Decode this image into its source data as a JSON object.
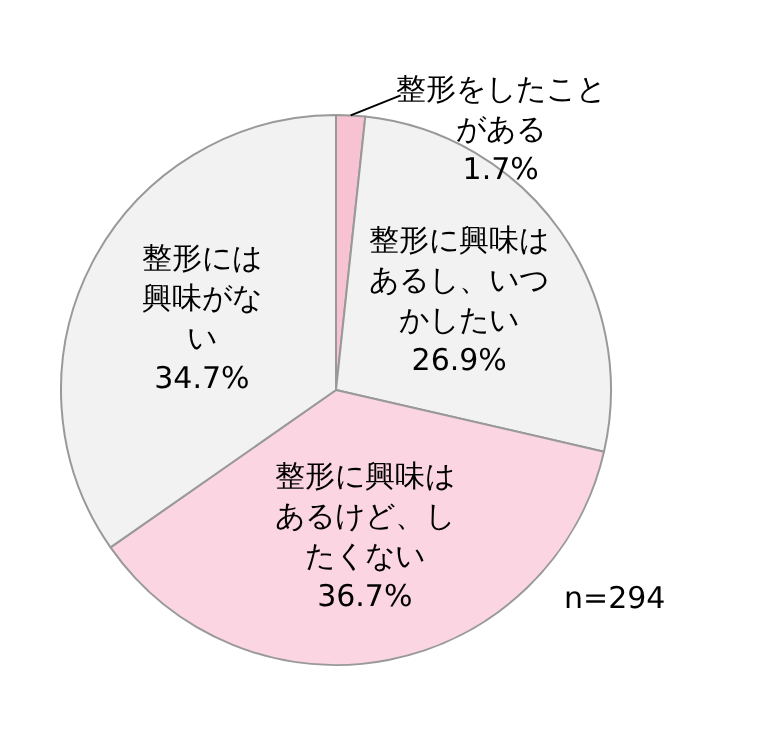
{
  "chart_data": {
    "type": "pie",
    "categories": [
      "整形をしたことがある",
      "整形に興味はあるし、いつかしたい",
      "整形に興味はあるけど、したくない",
      "整形には興味がない"
    ],
    "values": [
      1.7,
      26.9,
      36.7,
      34.7
    ],
    "value_labels": [
      "1.7%",
      "26.9%",
      "36.7%",
      "34.7%"
    ],
    "colors": [
      "#f7c3d2",
      "#f2f2f2",
      "#fbd5e1",
      "#f2f2f2"
    ],
    "annotations": [
      "n=294"
    ],
    "legend": false
  }
}
